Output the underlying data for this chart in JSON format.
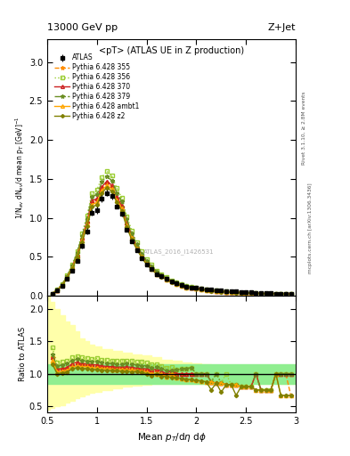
{
  "title_top": "13000 GeV pp",
  "title_right": "Z+Jet",
  "plot_title": "<pT> (ATLAS UE in Z production)",
  "xlabel": "Mean $p_T$/d$\\eta$ d$\\phi$",
  "ylabel_main": "1/N$_{ev}$ dN$_{ev}$/d mean p$_T$ [GeV]$^{-1}$",
  "ylabel_ratio": "Ratio to ATLAS",
  "right_label_top": "Rivet 3.1.10, ≥ 2.8M events",
  "right_label_bottom": "mcplots.cern.ch [arXiv:1306.3436]",
  "watermark": "ATLAS_2016_I1426531",
  "xlim": [
    0.5,
    3.0
  ],
  "ylim_main": [
    0.0,
    3.3
  ],
  "ylim_ratio": [
    0.4,
    2.2
  ],
  "x_data": [
    0.55,
    0.6,
    0.65,
    0.7,
    0.75,
    0.8,
    0.85,
    0.9,
    0.95,
    1.0,
    1.05,
    1.1,
    1.15,
    1.2,
    1.25,
    1.3,
    1.35,
    1.4,
    1.45,
    1.5,
    1.55,
    1.6,
    1.65,
    1.7,
    1.75,
    1.8,
    1.85,
    1.9,
    1.95,
    2.0,
    2.05,
    2.1,
    2.15,
    2.2,
    2.25,
    2.3,
    2.35,
    2.4,
    2.45,
    2.5,
    2.55,
    2.6,
    2.65,
    2.7,
    2.75,
    2.8,
    2.85,
    2.9,
    2.95
  ],
  "atlas_y": [
    0.02,
    0.07,
    0.13,
    0.22,
    0.32,
    0.45,
    0.64,
    0.83,
    1.07,
    1.1,
    1.25,
    1.32,
    1.28,
    1.15,
    1.05,
    0.85,
    0.7,
    0.58,
    0.48,
    0.4,
    0.35,
    0.28,
    0.25,
    0.22,
    0.18,
    0.16,
    0.14,
    0.12,
    0.11,
    0.1,
    0.09,
    0.08,
    0.08,
    0.07,
    0.07,
    0.06,
    0.06,
    0.06,
    0.05,
    0.05,
    0.05,
    0.04,
    0.04,
    0.04,
    0.04,
    0.03,
    0.03,
    0.03,
    0.03
  ],
  "atlas_yerr": [
    0.004,
    0.008,
    0.012,
    0.016,
    0.022,
    0.028,
    0.033,
    0.04,
    0.042,
    0.042,
    0.042,
    0.042,
    0.04,
    0.032,
    0.03,
    0.026,
    0.022,
    0.018,
    0.015,
    0.012,
    0.01,
    0.009,
    0.008,
    0.007,
    0.006,
    0.005,
    0.005,
    0.004,
    0.004,
    0.003,
    0.003,
    0.003,
    0.003,
    0.002,
    0.002,
    0.002,
    0.002,
    0.002,
    0.002,
    0.002,
    0.002,
    0.002,
    0.002,
    0.002,
    0.002,
    0.002,
    0.002,
    0.002,
    0.002
  ],
  "p355_y": [
    0.025,
    0.075,
    0.14,
    0.24,
    0.36,
    0.52,
    0.73,
    0.94,
    1.2,
    1.23,
    1.38,
    1.45,
    1.4,
    1.25,
    1.14,
    0.92,
    0.75,
    0.62,
    0.51,
    0.42,
    0.36,
    0.29,
    0.25,
    0.22,
    0.18,
    0.16,
    0.14,
    0.12,
    0.11,
    0.1,
    0.09,
    0.08,
    0.07,
    0.06,
    0.06,
    0.05,
    0.05,
    0.05,
    0.04,
    0.04,
    0.04,
    0.04,
    0.03,
    0.03,
    0.03,
    0.03,
    0.03,
    0.03,
    0.02
  ],
  "p356_y": [
    0.028,
    0.082,
    0.155,
    0.265,
    0.4,
    0.57,
    0.8,
    1.03,
    1.32,
    1.36,
    1.52,
    1.6,
    1.54,
    1.38,
    1.26,
    1.02,
    0.84,
    0.69,
    0.57,
    0.47,
    0.4,
    0.32,
    0.28,
    0.24,
    0.2,
    0.17,
    0.15,
    0.13,
    0.12,
    0.1,
    0.09,
    0.08,
    0.07,
    0.07,
    0.06,
    0.06,
    0.05,
    0.05,
    0.04,
    0.04,
    0.04,
    0.04,
    0.03,
    0.03,
    0.03,
    0.03,
    0.03,
    0.03,
    0.03
  ],
  "p370_y": [
    0.025,
    0.075,
    0.14,
    0.24,
    0.37,
    0.53,
    0.74,
    0.96,
    1.22,
    1.25,
    1.4,
    1.47,
    1.42,
    1.27,
    1.16,
    0.94,
    0.77,
    0.63,
    0.52,
    0.43,
    0.37,
    0.3,
    0.26,
    0.22,
    0.19,
    0.16,
    0.14,
    0.12,
    0.11,
    0.1,
    0.09,
    0.08,
    0.07,
    0.06,
    0.06,
    0.05,
    0.05,
    0.05,
    0.04,
    0.04,
    0.04,
    0.04,
    0.03,
    0.03,
    0.03,
    0.03,
    0.03,
    0.03,
    0.03
  ],
  "p379_y": [
    0.026,
    0.078,
    0.148,
    0.254,
    0.385,
    0.55,
    0.77,
    0.99,
    1.27,
    1.3,
    1.46,
    1.53,
    1.48,
    1.32,
    1.21,
    0.98,
    0.8,
    0.66,
    0.54,
    0.45,
    0.38,
    0.31,
    0.27,
    0.23,
    0.19,
    0.17,
    0.15,
    0.13,
    0.12,
    0.1,
    0.09,
    0.08,
    0.07,
    0.07,
    0.06,
    0.05,
    0.05,
    0.05,
    0.04,
    0.04,
    0.04,
    0.04,
    0.03,
    0.03,
    0.03,
    0.03,
    0.03,
    0.03,
    0.03
  ],
  "pambt1_y": [
    0.024,
    0.072,
    0.135,
    0.232,
    0.352,
    0.505,
    0.71,
    0.92,
    1.17,
    1.2,
    1.35,
    1.42,
    1.37,
    1.22,
    1.12,
    0.9,
    0.74,
    0.61,
    0.5,
    0.41,
    0.35,
    0.28,
    0.25,
    0.21,
    0.18,
    0.15,
    0.13,
    0.11,
    0.1,
    0.09,
    0.08,
    0.07,
    0.07,
    0.06,
    0.06,
    0.05,
    0.05,
    0.05,
    0.04,
    0.04,
    0.04,
    0.03,
    0.03,
    0.03,
    0.03,
    0.03,
    0.02,
    0.02,
    0.02
  ],
  "pz2_y": [
    0.023,
    0.07,
    0.132,
    0.226,
    0.343,
    0.492,
    0.692,
    0.895,
    1.14,
    1.17,
    1.32,
    1.39,
    1.34,
    1.2,
    1.09,
    0.88,
    0.72,
    0.6,
    0.49,
    0.4,
    0.34,
    0.28,
    0.24,
    0.21,
    0.17,
    0.15,
    0.13,
    0.11,
    0.1,
    0.09,
    0.08,
    0.07,
    0.06,
    0.06,
    0.05,
    0.05,
    0.05,
    0.04,
    0.04,
    0.04,
    0.04,
    0.03,
    0.03,
    0.03,
    0.03,
    0.03,
    0.02,
    0.02,
    0.02
  ],
  "color_355": "#FF8C00",
  "color_356": "#9ACD32",
  "color_370": "#CC2222",
  "color_379": "#6B8E23",
  "color_ambt1": "#FFA500",
  "color_z2": "#808000",
  "atlas_band_x": [
    0.5,
    0.55,
    0.6,
    0.65,
    0.7,
    0.75,
    0.8,
    0.85,
    0.9,
    0.95,
    1.0,
    1.1,
    1.2,
    1.3,
    1.4,
    1.5,
    1.6,
    1.7,
    1.8,
    1.9,
    2.0,
    2.1,
    2.2,
    2.3,
    2.4,
    2.5,
    2.6,
    2.7,
    2.8,
    2.9,
    3.0
  ],
  "atlas_band_green_lo": [
    0.85,
    0.85,
    0.85,
    0.85,
    0.85,
    0.85,
    0.85,
    0.85,
    0.85,
    0.85,
    0.85,
    0.85,
    0.85,
    0.85,
    0.85,
    0.85,
    0.85,
    0.85,
    0.85,
    0.85,
    0.85,
    0.85,
    0.85,
    0.85,
    0.85,
    0.85,
    0.85,
    0.85,
    0.85,
    0.85,
    0.85
  ],
  "atlas_band_green_hi": [
    1.15,
    1.15,
    1.15,
    1.15,
    1.15,
    1.15,
    1.15,
    1.15,
    1.15,
    1.15,
    1.15,
    1.15,
    1.15,
    1.15,
    1.15,
    1.15,
    1.15,
    1.15,
    1.15,
    1.15,
    1.15,
    1.15,
    1.15,
    1.15,
    1.15,
    1.15,
    1.15,
    1.15,
    1.15,
    1.15,
    1.15
  ],
  "atlas_band_yellow_lo": [
    0.45,
    0.48,
    0.5,
    0.52,
    0.55,
    0.58,
    0.62,
    0.65,
    0.68,
    0.7,
    0.72,
    0.75,
    0.78,
    0.8,
    0.82,
    0.83,
    0.84,
    0.85,
    0.85,
    0.85,
    0.85,
    0.85,
    0.85,
    0.85,
    0.85,
    0.85,
    0.85,
    0.85,
    0.85,
    0.85,
    0.85
  ],
  "atlas_band_yellow_hi": [
    2.2,
    2.1,
    2.0,
    1.9,
    1.8,
    1.75,
    1.65,
    1.55,
    1.5,
    1.45,
    1.42,
    1.38,
    1.35,
    1.32,
    1.3,
    1.28,
    1.25,
    1.22,
    1.2,
    1.18,
    1.16,
    1.15,
    1.13,
    1.12,
    1.11,
    1.1,
    1.1,
    1.1,
    1.1,
    1.1,
    1.1
  ]
}
